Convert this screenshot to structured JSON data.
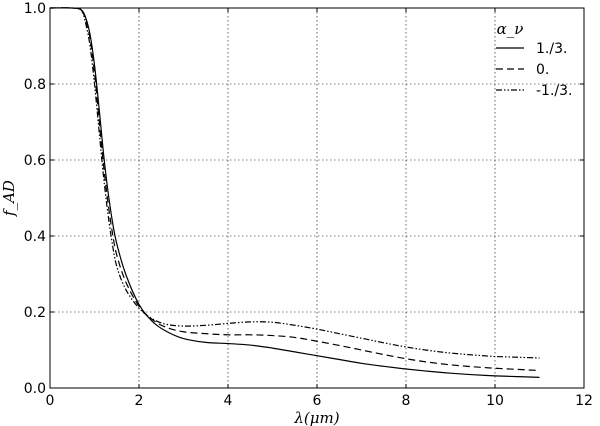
{
  "chart_data": {
    "type": "line",
    "xlabel": "λ(μm)",
    "ylabel": "f_AD",
    "xlim": [
      0,
      12
    ],
    "ylim": [
      0,
      1.0
    ],
    "x_ticks": [
      0,
      2,
      4,
      6,
      8,
      10,
      12
    ],
    "y_ticks": [
      0.0,
      0.2,
      0.4,
      0.6,
      0.8,
      1.0
    ],
    "x_tick_labels": [
      "0",
      "2",
      "4",
      "6",
      "8",
      "10",
      "12"
    ],
    "y_tick_labels": [
      "0.0",
      "0.2",
      "0.4",
      "0.6",
      "0.8",
      "1.0"
    ],
    "grid": true,
    "legend_position": "top-right",
    "legend_title": "α_ν",
    "series": [
      {
        "name": "1./3.",
        "style": "solid",
        "color": "#000000",
        "x": [
          0.0,
          0.5,
          0.7,
          0.8,
          0.9,
          1.0,
          1.1,
          1.2,
          1.3,
          1.4,
          1.5,
          1.7,
          2.0,
          2.3,
          2.6,
          3.0,
          3.5,
          4.0,
          4.5,
          5.0,
          5.5,
          6.0,
          6.5,
          7.0,
          7.5,
          8.0,
          8.5,
          9.0,
          9.5,
          10.0,
          10.5,
          11.0
        ],
        "y": [
          1.0,
          1.0,
          0.995,
          0.975,
          0.93,
          0.85,
          0.74,
          0.62,
          0.52,
          0.44,
          0.38,
          0.3,
          0.22,
          0.175,
          0.15,
          0.13,
          0.12,
          0.117,
          0.113,
          0.105,
          0.095,
          0.085,
          0.075,
          0.065,
          0.057,
          0.05,
          0.044,
          0.039,
          0.035,
          0.032,
          0.03,
          0.028
        ]
      },
      {
        "name": "0.",
        "style": "dashed",
        "color": "#000000",
        "x": [
          0.0,
          0.5,
          0.7,
          0.8,
          0.9,
          1.0,
          1.1,
          1.2,
          1.3,
          1.4,
          1.5,
          1.7,
          2.0,
          2.3,
          2.6,
          3.0,
          3.5,
          4.0,
          4.5,
          5.0,
          5.5,
          6.0,
          6.5,
          7.0,
          7.5,
          8.0,
          8.5,
          9.0,
          9.5,
          10.0,
          10.5,
          11.0
        ],
        "y": [
          1.0,
          1.0,
          0.995,
          0.97,
          0.92,
          0.83,
          0.71,
          0.59,
          0.49,
          0.41,
          0.35,
          0.28,
          0.215,
          0.18,
          0.16,
          0.148,
          0.143,
          0.14,
          0.14,
          0.138,
          0.133,
          0.123,
          0.112,
          0.1,
          0.088,
          0.077,
          0.068,
          0.061,
          0.056,
          0.052,
          0.049,
          0.046
        ]
      },
      {
        "name": "-1./3.",
        "style": "dash-dot-dot",
        "color": "#000000",
        "x": [
          0.0,
          0.5,
          0.7,
          0.8,
          0.9,
          1.0,
          1.1,
          1.2,
          1.3,
          1.4,
          1.5,
          1.7,
          2.0,
          2.3,
          2.6,
          3.0,
          3.5,
          4.0,
          4.5,
          5.0,
          5.5,
          6.0,
          6.5,
          7.0,
          7.5,
          8.0,
          8.5,
          9.0,
          9.5,
          10.0,
          10.5,
          11.0
        ],
        "y": [
          1.0,
          1.0,
          0.995,
          0.96,
          0.9,
          0.8,
          0.68,
          0.56,
          0.46,
          0.38,
          0.32,
          0.26,
          0.21,
          0.182,
          0.168,
          0.163,
          0.165,
          0.17,
          0.174,
          0.173,
          0.165,
          0.155,
          0.143,
          0.131,
          0.119,
          0.108,
          0.099,
          0.092,
          0.087,
          0.083,
          0.081,
          0.079
        ]
      }
    ]
  }
}
